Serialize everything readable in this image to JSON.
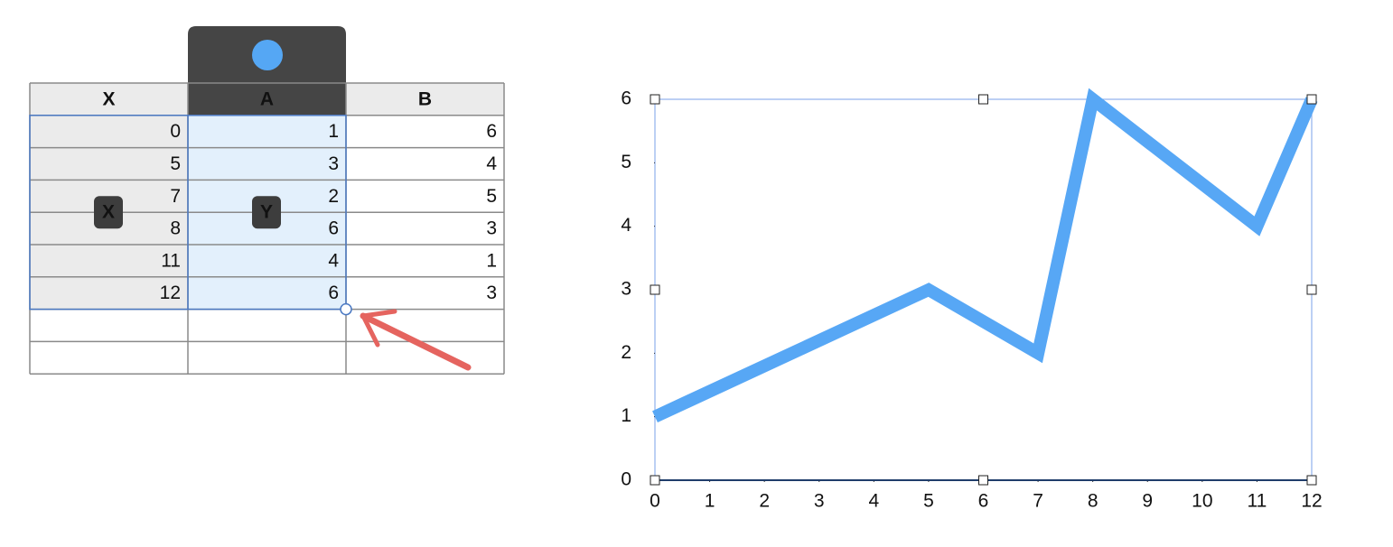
{
  "table": {
    "headers": [
      "X",
      "A",
      "B"
    ],
    "rows": [
      [
        0,
        1,
        6
      ],
      [
        5,
        3,
        4
      ],
      [
        7,
        2,
        5
      ],
      [
        8,
        6,
        3
      ],
      [
        11,
        4,
        1
      ],
      [
        12,
        6,
        3
      ]
    ],
    "badges": [
      "X",
      "Y"
    ]
  },
  "chart": {
    "type": "line",
    "x": [
      0,
      5,
      7,
      8,
      11,
      12
    ],
    "values": [
      1,
      3,
      2,
      6,
      4,
      6
    ],
    "color": "#57a7f5",
    "xlim": [
      0,
      12
    ],
    "ylim": [
      0,
      6
    ],
    "xticks": [
      0,
      1,
      2,
      3,
      4,
      5,
      6,
      7,
      8,
      9,
      10,
      11,
      12
    ],
    "yticks": [
      0,
      1,
      2,
      3,
      4,
      5,
      6
    ]
  }
}
